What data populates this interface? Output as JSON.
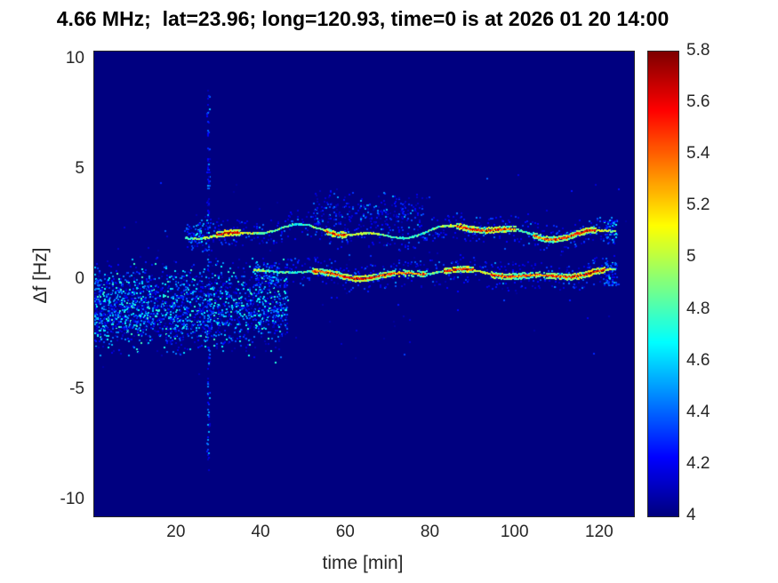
{
  "chart_data": {
    "type": "heatmap",
    "title": "4.66 MHz;  lat=23.96; long=120.93, time=0 is at 2026 01 20 14:00",
    "xlabel": "time [min]",
    "ylabel": "Δf [Hz]",
    "xlim": [
      0.5,
      128
    ],
    "ylim": [
      -10.7,
      10.4
    ],
    "xticks": [
      20,
      40,
      60,
      80,
      100,
      120
    ],
    "xtick_labels": [
      "20",
      "40",
      "60",
      "80",
      "100",
      "120"
    ],
    "yticks": [
      10,
      5,
      0,
      -5,
      -10
    ],
    "ytick_labels": [
      "10",
      "5",
      "0",
      "-5",
      "-10"
    ],
    "colormap": "jet",
    "color_range": [
      4,
      5.8
    ],
    "colorbar_ticks": [
      5.8,
      5.6,
      5.4,
      5.2,
      5,
      4.8,
      4.6,
      4.4,
      4.2,
      4
    ],
    "colorbar_tick_labels": [
      "5.8",
      "5.6",
      "5.4",
      "5.2",
      "5",
      "4.8",
      "4.6",
      "4.4",
      "4.2",
      "4"
    ],
    "background_value": 4,
    "legend": "none",
    "grid": false,
    "features": {
      "ridges": [
        {
          "name": "upper-doppler-trace",
          "y_center": 2.25,
          "x_start": 22,
          "x_end": 123.5,
          "wiggle": 0.22,
          "value_range": [
            4.5,
            5.8
          ],
          "hot_spots": [
            [
              29,
              35
            ],
            [
              55,
              60
            ],
            [
              86,
              100
            ],
            [
              104,
              119
            ]
          ]
        },
        {
          "name": "lower-doppler-trace",
          "y_center": 0.35,
          "x_start": 38,
          "x_end": 123.5,
          "wiggle": 0.14,
          "value_range": [
            4.6,
            5.8
          ],
          "hot_spots": [
            [
              52,
              79
            ],
            [
              83,
              90
            ],
            [
              94,
              121
            ]
          ]
        }
      ],
      "noise_clouds": [
        {
          "name": "lower-left-speckle",
          "x_range": [
            0.5,
            46
          ],
          "x_bias": 1.25,
          "y_center": -1.2,
          "y_spread": 2.6,
          "count": 2300,
          "value_range": [
            4.08,
            4.8
          ]
        },
        {
          "name": "mid-plume-above-upper-trace",
          "x_range": [
            52,
            78
          ],
          "x_bias": 1,
          "y_center": 3.2,
          "y_spread": 1.1,
          "count": 240,
          "value_range": [
            4.08,
            4.55
          ]
        },
        {
          "name": "sparse-background-speckle",
          "x_range": [
            0.5,
            127
          ],
          "x_bias": 1,
          "y_center": 0.3,
          "y_spread": 5.5,
          "count": 160,
          "value_range": [
            4.05,
            4.4
          ]
        }
      ],
      "vertical_streak": {
        "name": "interference-streak",
        "x": 27.3,
        "y_range": [
          -8.6,
          8.8
        ],
        "count": 150,
        "value_range": [
          4.08,
          4.55
        ]
      }
    }
  },
  "colors": {
    "figure_background": "#ffffff",
    "axis_text": "#262626",
    "title_text": "#000000",
    "heatmap_background": "#00008f"
  }
}
